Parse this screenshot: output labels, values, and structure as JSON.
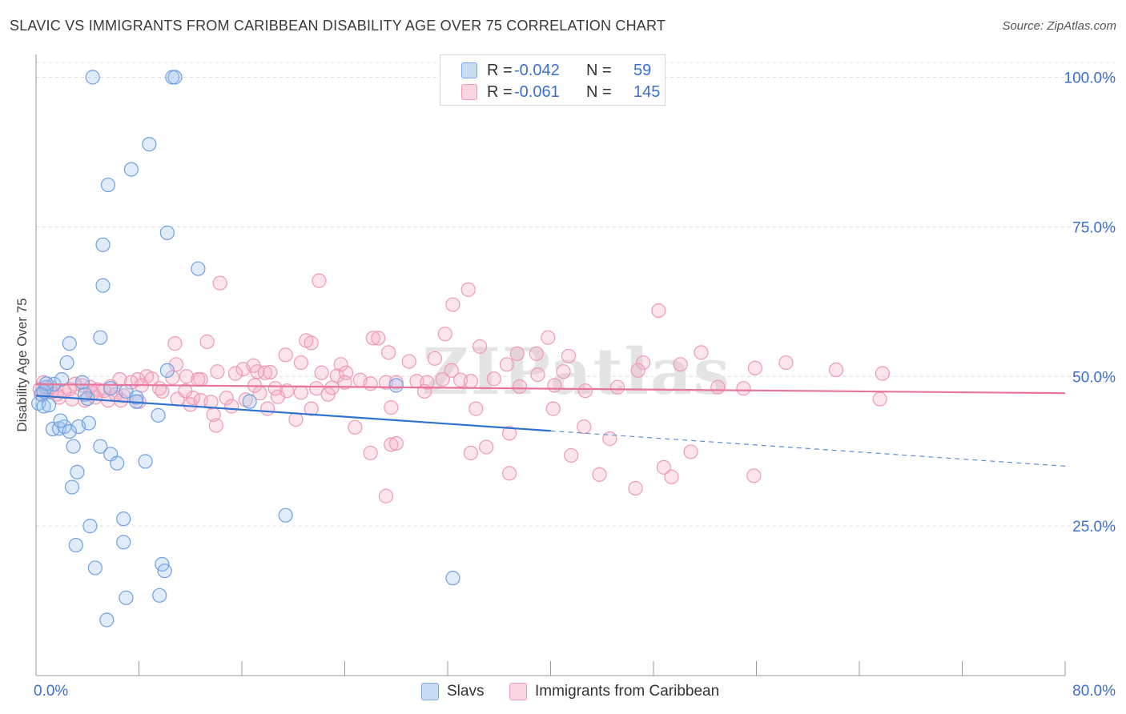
{
  "title": "SLAVIC VS IMMIGRANTS FROM CARIBBEAN DISABILITY AGE OVER 75 CORRELATION CHART",
  "source": "Source: ZipAtlas.com",
  "legend_top": {
    "rows": [
      {
        "r_label": "R =",
        "r_value": "-0.042",
        "n_label": "N =",
        "n_value": "59",
        "color": "#a9c8f0"
      },
      {
        "r_label": "R =",
        "r_value": "-0.061",
        "n_label": "N =",
        "n_value": "145",
        "color": "#f5b6cb"
      }
    ]
  },
  "legend_bottom": [
    {
      "label": "Slavs",
      "color": "#a9c8f0"
    },
    {
      "label": "Immigrants from Caribbean",
      "color": "#f5b6cb"
    }
  ],
  "watermark": "ZIPatlas",
  "chart_data": {
    "type": "scatter",
    "title": "SLAVIC VS IMMIGRANTS FROM CARIBBEAN DISABILITY AGE OVER 75 CORRELATION CHART",
    "xlabel": "",
    "ylabel": "Disability Age Over 75",
    "xlim": [
      0,
      80
    ],
    "ylim": [
      0,
      102
    ],
    "x_tick_labels": [
      "0.0%",
      "80.0%"
    ],
    "y_ticks": [
      25,
      50,
      75,
      100
    ],
    "y_tick_labels": [
      "25.0%",
      "50.0%",
      "75.0%",
      "100.0%"
    ],
    "grid": "horizontal dashed",
    "series": [
      {
        "name": "Slavs",
        "color": "#6fa0e3",
        "r": -0.042,
        "n": 59,
        "trend": {
          "x_start": 0,
          "y_start": 46.8,
          "x_solid_end": 40,
          "x_end": 80,
          "y_end": 35.0
        },
        "points": [
          [
            4.4,
            100.0
          ],
          [
            10.6,
            100.0
          ],
          [
            10.8,
            100.0
          ],
          [
            8.8,
            88.8
          ],
          [
            7.4,
            84.6
          ],
          [
            5.6,
            82.0
          ],
          [
            10.2,
            74.0
          ],
          [
            5.2,
            72.0
          ],
          [
            12.6,
            68.0
          ],
          [
            5.2,
            65.2
          ],
          [
            5.0,
            56.5
          ],
          [
            2.6,
            55.5
          ],
          [
            2.4,
            52.3
          ],
          [
            10.2,
            51.0
          ],
          [
            1.4,
            48.7
          ],
          [
            3.6,
            49.0
          ],
          [
            0.8,
            48.2
          ],
          [
            0.6,
            47.5
          ],
          [
            0.4,
            47.0
          ],
          [
            7.0,
            47.5
          ],
          [
            5.8,
            48.0
          ],
          [
            0.2,
            45.5
          ],
          [
            0.6,
            45.0
          ],
          [
            1.0,
            45.2
          ],
          [
            4.0,
            46.3
          ],
          [
            7.8,
            46.5
          ],
          [
            16.6,
            45.8
          ],
          [
            28.0,
            48.5
          ],
          [
            3.8,
            47.0
          ],
          [
            7.8,
            45.8
          ],
          [
            1.3,
            41.2
          ],
          [
            1.8,
            41.3
          ],
          [
            2.2,
            41.6
          ],
          [
            3.3,
            41.6
          ],
          [
            4.1,
            42.2
          ],
          [
            2.6,
            40.8
          ],
          [
            9.5,
            43.5
          ],
          [
            1.9,
            42.6
          ],
          [
            2.9,
            38.3
          ],
          [
            5.0,
            38.3
          ],
          [
            5.8,
            37.0
          ],
          [
            6.3,
            35.5
          ],
          [
            8.5,
            35.8
          ],
          [
            3.2,
            34.0
          ],
          [
            2.8,
            31.5
          ],
          [
            19.4,
            26.8
          ],
          [
            6.8,
            26.2
          ],
          [
            4.2,
            25.0
          ],
          [
            6.8,
            22.3
          ],
          [
            3.1,
            21.8
          ],
          [
            9.8,
            18.6
          ],
          [
            4.6,
            18.0
          ],
          [
            10.0,
            17.5
          ],
          [
            32.4,
            16.3
          ],
          [
            7.0,
            13.0
          ],
          [
            9.6,
            13.4
          ],
          [
            5.5,
            9.3
          ],
          [
            0.8,
            48.8
          ],
          [
            2.0,
            49.5
          ]
        ]
      },
      {
        "name": "Immigrants from Caribbean",
        "color": "#ee8fb0",
        "r": -0.061,
        "n": 145,
        "trend": {
          "x_start": 0,
          "y_start": 48.7,
          "x_end": 80,
          "y_end": 47.2
        },
        "points": [
          [
            22.0,
            66.0
          ],
          [
            14.3,
            65.6
          ],
          [
            33.6,
            64.5
          ],
          [
            32.4,
            62.0
          ],
          [
            48.4,
            61.0
          ],
          [
            31.8,
            57.1
          ],
          [
            21.4,
            55.6
          ],
          [
            13.3,
            55.8
          ],
          [
            10.8,
            55.5
          ],
          [
            26.2,
            56.4
          ],
          [
            26.6,
            56.4
          ],
          [
            21.0,
            56.0
          ],
          [
            34.5,
            55.0
          ],
          [
            39.8,
            56.5
          ],
          [
            31.0,
            53.0
          ],
          [
            27.4,
            54.0
          ],
          [
            37.4,
            53.8
          ],
          [
            38.9,
            53.8
          ],
          [
            41.4,
            53.4
          ],
          [
            51.7,
            54.0
          ],
          [
            19.4,
            53.6
          ],
          [
            23.7,
            52.0
          ],
          [
            20.6,
            52.3
          ],
          [
            29.0,
            52.5
          ],
          [
            32.3,
            51.0
          ],
          [
            36.6,
            52.0
          ],
          [
            47.2,
            52.3
          ],
          [
            50.1,
            52.0
          ],
          [
            58.3,
            52.3
          ],
          [
            41.0,
            50.8
          ],
          [
            46.8,
            51.0
          ],
          [
            55.9,
            51.4
          ],
          [
            62.2,
            51.1
          ],
          [
            65.8,
            50.5
          ],
          [
            16.1,
            51.2
          ],
          [
            16.9,
            51.8
          ],
          [
            17.2,
            50.8
          ],
          [
            17.8,
            50.6
          ],
          [
            18.2,
            50.7
          ],
          [
            22.2,
            50.6
          ],
          [
            23.4,
            50.1
          ],
          [
            24.1,
            50.6
          ],
          [
            10.9,
            52.0
          ],
          [
            11.7,
            50.0
          ],
          [
            12.8,
            49.5
          ],
          [
            14.1,
            50.8
          ],
          [
            15.5,
            50.5
          ],
          [
            8.6,
            50.0
          ],
          [
            9.0,
            49.6
          ],
          [
            7.9,
            49.5
          ],
          [
            7.4,
            49.0
          ],
          [
            6.5,
            49.5
          ],
          [
            5.8,
            48.3
          ],
          [
            5.3,
            47.6
          ],
          [
            4.8,
            47.8
          ],
          [
            4.2,
            48.2
          ],
          [
            3.6,
            48.5
          ],
          [
            3.0,
            48.7
          ],
          [
            2.6,
            47.9
          ],
          [
            2.2,
            47.5
          ],
          [
            1.6,
            47.0
          ],
          [
            1.2,
            47.4
          ],
          [
            0.8,
            47.6
          ],
          [
            0.6,
            49.0
          ],
          [
            1.1,
            48.2
          ],
          [
            0.3,
            47.9
          ],
          [
            0.5,
            46.9
          ],
          [
            1.8,
            46.5
          ],
          [
            2.8,
            46.2
          ],
          [
            3.8,
            46.0
          ],
          [
            4.6,
            46.5
          ],
          [
            5.6,
            46.0
          ],
          [
            6.8,
            46.8
          ],
          [
            6.6,
            46.0
          ],
          [
            9.8,
            47.5
          ],
          [
            11.0,
            46.2
          ],
          [
            12.2,
            46.4
          ],
          [
            12.0,
            45.3
          ],
          [
            12.8,
            46.0
          ],
          [
            13.6,
            45.7
          ],
          [
            14.8,
            46.4
          ],
          [
            15.2,
            45.0
          ],
          [
            16.3,
            46.1
          ],
          [
            17.4,
            47.2
          ],
          [
            18.8,
            46.6
          ],
          [
            19.5,
            47.6
          ],
          [
            20.6,
            47.3
          ],
          [
            21.8,
            48.0
          ],
          [
            22.7,
            47.0
          ],
          [
            24.0,
            49.0
          ],
          [
            25.2,
            49.4
          ],
          [
            26.0,
            48.8
          ],
          [
            27.2,
            49.0
          ],
          [
            28.0,
            49.0
          ],
          [
            29.6,
            49.2
          ],
          [
            30.4,
            49.0
          ],
          [
            31.6,
            49.5
          ],
          [
            33.0,
            49.4
          ],
          [
            33.8,
            49.2
          ],
          [
            35.6,
            49.6
          ],
          [
            37.6,
            48.3
          ],
          [
            39.0,
            50.3
          ],
          [
            40.3,
            48.5
          ],
          [
            42.7,
            47.6
          ],
          [
            45.2,
            48.2
          ],
          [
            53.0,
            48.2
          ],
          [
            55.0,
            48.0
          ],
          [
            65.6,
            46.2
          ],
          [
            4.4,
            47.2
          ],
          [
            8.2,
            48.5
          ],
          [
            9.6,
            48.0
          ],
          [
            10.6,
            49.8
          ],
          [
            12.6,
            49.5
          ],
          [
            18.0,
            44.6
          ],
          [
            21.4,
            44.6
          ],
          [
            23.0,
            48.1
          ],
          [
            27.6,
            44.8
          ],
          [
            34.2,
            44.6
          ],
          [
            40.2,
            44.6
          ],
          [
            13.8,
            43.6
          ],
          [
            17.0,
            48.5
          ],
          [
            20.2,
            42.8
          ],
          [
            14.0,
            41.8
          ],
          [
            24.8,
            41.5
          ],
          [
            36.8,
            40.5
          ],
          [
            42.6,
            41.6
          ],
          [
            44.6,
            39.6
          ],
          [
            27.6,
            38.6
          ],
          [
            28.0,
            38.8
          ],
          [
            35.0,
            38.2
          ],
          [
            26.0,
            37.2
          ],
          [
            33.8,
            37.2
          ],
          [
            41.6,
            36.8
          ],
          [
            50.9,
            37.4
          ],
          [
            48.8,
            34.8
          ],
          [
            36.8,
            33.8
          ],
          [
            43.8,
            33.6
          ],
          [
            55.8,
            33.4
          ],
          [
            49.4,
            33.2
          ],
          [
            46.6,
            31.3
          ],
          [
            27.2,
            30.0
          ],
          [
            8.0,
            45.8
          ],
          [
            11.6,
            47.6
          ],
          [
            18.6,
            48.0
          ],
          [
            30.2,
            47.5
          ],
          [
            6.2,
            47.0
          ]
        ]
      }
    ]
  }
}
